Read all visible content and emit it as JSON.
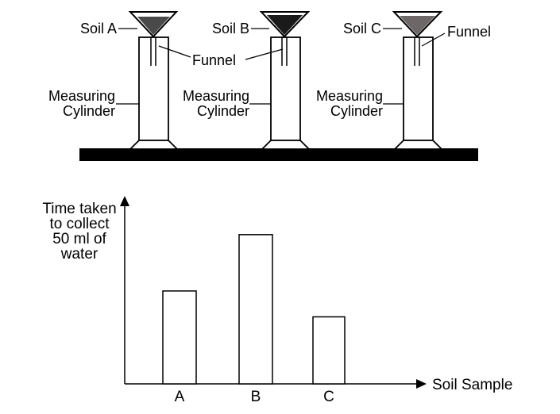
{
  "apparatus": [
    {
      "soil_label": "Soil A",
      "funnel_label": "Funnel",
      "cylinder_label_line1": "Measuring",
      "cylinder_label_line2": "Cylinder",
      "soil_color": "#4a4a4a"
    },
    {
      "soil_label": "Soil B",
      "funnel_label": "",
      "cylinder_label_line1": "Measuring",
      "cylinder_label_line2": "Cylinder",
      "soil_color": "#1a1a1a"
    },
    {
      "soil_label": "Soil C",
      "funnel_label": "Funnel",
      "cylinder_label_line1": "Measuring",
      "cylinder_label_line2": "Cylinder",
      "soil_color": "#6e6767"
    }
  ],
  "chart_data": {
    "type": "bar",
    "ylabel_lines": [
      "Time taken",
      "to collect",
      "50 ml of",
      "water"
    ],
    "xlabel": "Soil Sample",
    "categories": [
      "A",
      "B",
      "C"
    ],
    "values": [
      0.61,
      0.98,
      0.44
    ],
    "y_unit": "relative (no numeric scale shown)",
    "grid": false
  }
}
